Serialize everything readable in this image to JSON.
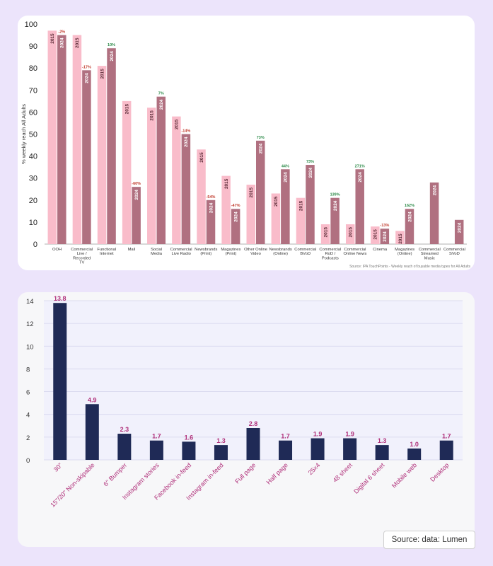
{
  "chart_data": [
    {
      "type": "bar",
      "ylabel": "% weekly reach All Adults",
      "ylim": [
        0,
        100
      ],
      "yticks": [
        0,
        10,
        20,
        30,
        40,
        50,
        60,
        70,
        80,
        90,
        100
      ],
      "grid": false,
      "series_names": [
        "2015",
        "2024"
      ],
      "colors": {
        "2015": "#f9bcca",
        "2024": "#b07080",
        "positive": "#2e8b4a",
        "negative": "#c0392b"
      },
      "categories": [
        [
          "OOH"
        ],
        [
          "Commercial",
          "Live /",
          "Recorded",
          "TV"
        ],
        [
          "Functional",
          "Internet"
        ],
        [
          "Mail"
        ],
        [
          "Social",
          "Media"
        ],
        [
          "Commercial",
          "Live Radio"
        ],
        [
          "Newsbrands",
          "(Print)"
        ],
        [
          "Magazines",
          "(Print)"
        ],
        [
          "Other Online",
          "Video"
        ],
        [
          "Newsbrands",
          "(Online)"
        ],
        [
          "Commercial",
          "BVoD"
        ],
        [
          "Commercial",
          "RoD /",
          "Podcasts"
        ],
        [
          "Commercial",
          "Online News"
        ],
        [
          "Cinema"
        ],
        [
          "Magazines",
          "(Online)"
        ],
        [
          "Commercial",
          "Streamed",
          "Music"
        ],
        [
          "Commercial",
          "SVoD"
        ]
      ],
      "values_2015": [
        97,
        95,
        81,
        65,
        62,
        58,
        43,
        31,
        27,
        23,
        21,
        9,
        9,
        8,
        6,
        null,
        null
      ],
      "values_2024": [
        95,
        79,
        89,
        26,
        67,
        50,
        20,
        16,
        47,
        34,
        36,
        21,
        34,
        7,
        16,
        28,
        11
      ],
      "change_labels": [
        "-2%",
        "-17%",
        "10%",
        "-60%",
        "7%",
        "-14%",
        "-54%",
        "-47%",
        "73%",
        "44%",
        "73%",
        "139%",
        "271%",
        "-13%",
        "162%",
        "",
        ""
      ],
      "source": "Source: IPA TouchPoints - Weekly reach of buyable media types for All Adults"
    },
    {
      "type": "bar",
      "ylim": [
        0,
        14
      ],
      "yticks": [
        0,
        2,
        4,
        6,
        8,
        10,
        12,
        14
      ],
      "grid": true,
      "color": "#1f2a56",
      "label_color": "#b0307a",
      "categories": [
        "30\"",
        "15\"/20\" Non-skipable",
        "6\" Bumper",
        "Instagram stories",
        "Facebook in-feed",
        "Instagram in-feed",
        "Full page",
        "Half page",
        "25x4",
        "48 sheet",
        "Digital 6 sheet",
        "Mobile web",
        "Desktop"
      ],
      "values": [
        13.8,
        4.9,
        2.3,
        1.7,
        1.6,
        1.3,
        2.8,
        1.7,
        1.9,
        1.9,
        1.3,
        1.0,
        1.7
      ],
      "value_labels": [
        "13.8",
        "4.9",
        "2.3",
        "1.7",
        "1.6",
        "1.3",
        "2.8",
        "1.7",
        "1.9",
        "1.9",
        "1.3",
        "1.0",
        "1.7"
      ],
      "source": "Source: data: Lumen"
    }
  ]
}
